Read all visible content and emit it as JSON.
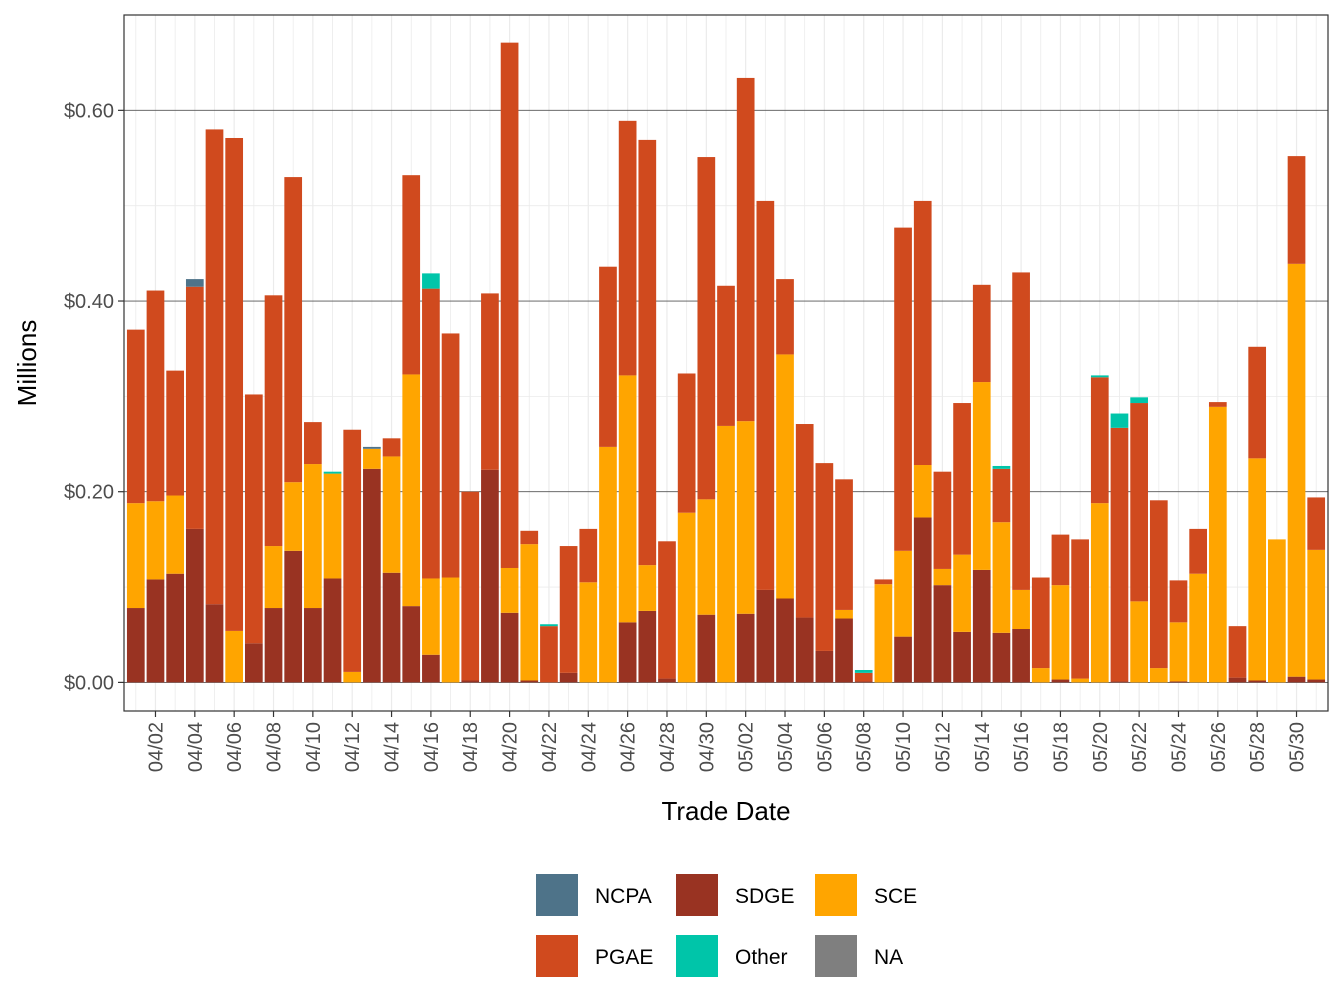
{
  "chart_data": {
    "type": "bar",
    "stacked": true,
    "xlabel": "Trade Date",
    "ylabel": "Millions",
    "ylim": [
      -0.03,
      0.7
    ],
    "yticks": [
      0,
      0.2,
      0.4,
      0.6
    ],
    "ytick_labels": [
      "$0.00",
      "$0.20",
      "$0.40",
      "$0.60"
    ],
    "xtick_labels": [
      "04/02",
      "04/04",
      "04/06",
      "04/08",
      "04/10",
      "04/12",
      "04/14",
      "04/16",
      "04/18",
      "04/20",
      "04/22",
      "04/24",
      "04/26",
      "04/28",
      "04/30",
      "05/02",
      "05/04",
      "05/06",
      "05/08",
      "05/10",
      "05/12",
      "05/14",
      "05/16",
      "05/18",
      "05/20",
      "05/22",
      "05/24",
      "05/26",
      "05/28",
      "05/30"
    ],
    "grid": true,
    "legend_position": "bottom",
    "categories": [
      "04/01",
      "04/02",
      "04/03",
      "04/04",
      "04/05",
      "04/06",
      "04/07",
      "04/08",
      "04/09",
      "04/10",
      "04/11",
      "04/12",
      "04/13",
      "04/14",
      "04/15",
      "04/16",
      "04/17",
      "04/18",
      "04/19",
      "04/20",
      "04/21",
      "04/22",
      "04/23",
      "04/24",
      "04/25",
      "04/26",
      "04/27",
      "04/28",
      "04/29",
      "04/30",
      "05/01",
      "05/02",
      "05/03",
      "05/04",
      "05/05",
      "05/06",
      "05/07",
      "05/08",
      "05/09",
      "05/10",
      "05/11",
      "05/12",
      "05/13",
      "05/14",
      "05/15",
      "05/16",
      "05/17",
      "05/18",
      "05/19",
      "05/20",
      "05/21",
      "05/22",
      "05/23",
      "05/24",
      "05/25",
      "05/26",
      "05/27",
      "05/28",
      "05/29",
      "05/30",
      "05/31"
    ],
    "series": [
      {
        "name": "SDGE",
        "color": "#993322",
        "values": [
          0.078,
          0.108,
          0.114,
          0.161,
          0.082,
          0,
          0.041,
          0.078,
          0.138,
          0.078,
          0.109,
          0,
          0.224,
          0.115,
          0.08,
          0.029,
          0,
          0.002,
          0.223,
          0.073,
          0.002,
          0,
          0.01,
          0,
          0,
          0.063,
          0.075,
          0.004,
          0,
          0.071,
          0,
          0.072,
          0.097,
          0.088,
          0.068,
          0.033,
          0.067,
          0.001,
          0,
          0.048,
          0.173,
          0.102,
          0.053,
          0.118,
          0.052,
          0.056,
          0,
          0.003,
          0,
          0,
          0.001,
          0,
          0,
          0.001,
          0,
          0,
          0.005,
          0.002,
          0,
          0.006,
          0.003
        ]
      },
      {
        "name": "SCE",
        "color": "#ffa500",
        "values": [
          0.11,
          0.082,
          0.082,
          0,
          0,
          0.054,
          0,
          0.065,
          0.072,
          0.151,
          0.11,
          0.011,
          0.021,
          0.122,
          0.243,
          0.08,
          0.11,
          0,
          0,
          0.047,
          0.143,
          0,
          0,
          0.105,
          0.247,
          0.259,
          0.048,
          0,
          0.178,
          0.121,
          0.269,
          0.202,
          0,
          0.256,
          0,
          0,
          0.009,
          0,
          0.103,
          0.09,
          0.055,
          0.017,
          0.081,
          0.197,
          0.116,
          0.041,
          0.015,
          0.099,
          0.004,
          0.188,
          0,
          0.085,
          0.015,
          0.062,
          0.114,
          0.289,
          0,
          0.233,
          0.15,
          0.433,
          0.136
        ]
      },
      {
        "name": "PGAE",
        "color": "#d04a1e",
        "values": [
          0.182,
          0.221,
          0.131,
          0.254,
          0.498,
          0.517,
          0.261,
          0.263,
          0.32,
          0.044,
          0,
          0.254,
          0,
          0.019,
          0.209,
          0.304,
          0.256,
          0.198,
          0.185,
          0.551,
          0.014,
          0.059,
          0.133,
          0.056,
          0.189,
          0.267,
          0.446,
          0.144,
          0.146,
          0.359,
          0.147,
          0.36,
          0.408,
          0.079,
          0.203,
          0.197,
          0.137,
          0.009,
          0.005,
          0.339,
          0.277,
          0.102,
          0.159,
          0.102,
          0.056,
          0.333,
          0.095,
          0.053,
          0.146,
          0.132,
          0.266,
          0.208,
          0.176,
          0.044,
          0.047,
          0.005,
          0.054,
          0.117,
          0,
          0.113,
          0.055
        ]
      },
      {
        "name": "NCPA",
        "color": "#4e7389",
        "values": [
          0,
          0,
          0,
          0.008,
          0,
          0,
          0,
          0,
          0,
          0,
          0,
          0,
          0.002,
          0,
          0,
          0,
          0,
          0,
          0,
          0,
          0,
          0,
          0,
          0,
          0,
          0,
          0,
          0,
          0,
          0,
          0,
          0,
          0,
          0,
          0,
          0,
          0,
          0,
          0,
          0,
          0,
          0,
          0,
          0,
          0,
          0,
          0,
          0,
          0,
          0,
          0,
          0,
          0,
          0,
          0,
          0,
          0,
          0,
          0,
          0,
          0
        ]
      },
      {
        "name": "Other",
        "color": "#00c5a9",
        "values": [
          0,
          0,
          0,
          0,
          0,
          0,
          0,
          0,
          0,
          0,
          0.002,
          0,
          0,
          0,
          0,
          0.016,
          0,
          0,
          0,
          0,
          0,
          0.002,
          0,
          0,
          0,
          0,
          0,
          0,
          0,
          0,
          0,
          0,
          0,
          0,
          0,
          0,
          0,
          0.003,
          0,
          0,
          0,
          0,
          0,
          0,
          0.003,
          0,
          0,
          0,
          0,
          0.002,
          0.015,
          0.006,
          0,
          0,
          0,
          0,
          0,
          0,
          0,
          0,
          0
        ]
      },
      {
        "name": "NA",
        "color": "#7f7f7f",
        "values": [
          0,
          0,
          0,
          0,
          0,
          0,
          0,
          0,
          0,
          0,
          0,
          0,
          0,
          0,
          0,
          0,
          0,
          0,
          0,
          0,
          0,
          0,
          0,
          0,
          0,
          0,
          0,
          0,
          0,
          0,
          0,
          0,
          0,
          0,
          0,
          0,
          0,
          0,
          0,
          0,
          0,
          0,
          0,
          0,
          0,
          0,
          0,
          0,
          0,
          0,
          0,
          0,
          0,
          0,
          0,
          0,
          0,
          0,
          0,
          0,
          0
        ]
      }
    ]
  },
  "legend": {
    "items": [
      {
        "label": "NCPA",
        "color": "#4e7389"
      },
      {
        "label": "PGAE",
        "color": "#d04a1e"
      },
      {
        "label": "SDGE",
        "color": "#993322"
      },
      {
        "label": "Other",
        "color": "#00c5a9"
      },
      {
        "label": "SCE",
        "color": "#ffa500"
      },
      {
        "label": "NA",
        "color": "#7f7f7f"
      }
    ]
  }
}
